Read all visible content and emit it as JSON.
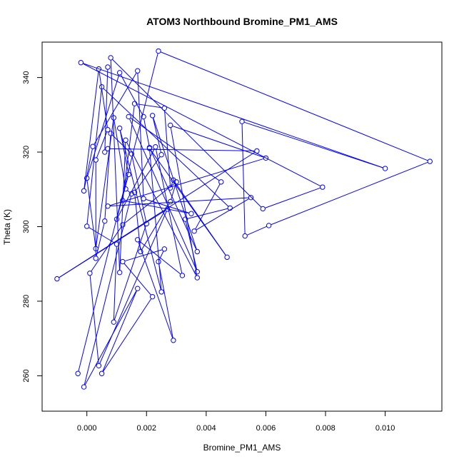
{
  "chart_data": {
    "type": "line",
    "title": "ATOM3 Northbound Bromine_PM1_AMS",
    "xlabel": "Bromine_PM1_AMS",
    "ylabel": "Theta (K)",
    "xlim": [
      -0.0015,
      0.0119
    ],
    "ylim": [
      250.5,
      349.5
    ],
    "x_ticks": [
      0.0,
      0.002,
      0.004,
      0.006,
      0.008,
      0.01
    ],
    "x_tick_labels": [
      "0.000",
      "0.002",
      "0.004",
      "0.006",
      "0.008",
      "0.010"
    ],
    "y_ticks": [
      260,
      280,
      300,
      320,
      340
    ],
    "y_tick_labels": [
      "260",
      "280",
      "300",
      "320",
      "340"
    ],
    "grid": false,
    "series_color": "#0000ff",
    "series": [
      {
        "points": [
          [
            -0.0003,
            260.6
          ],
          [
            0.0024,
            347.1
          ],
          [
            0.0115,
            317.5
          ],
          [
            0.0061,
            300.3
          ],
          [
            0.0053,
            297.5
          ],
          [
            0.0052,
            328.2
          ],
          [
            0.01,
            315.6
          ],
          [
            -0.0002,
            344.0
          ],
          [
            0.0079,
            310.6
          ],
          [
            0.0059,
            304.8
          ],
          [
            0.0008,
            345.3
          ],
          [
            0.0011,
            287.7
          ],
          [
            0.0013,
            323.2
          ],
          [
            0.0037,
            286.3
          ],
          [
            0.0028,
            327.2
          ],
          [
            0.006,
            318.4
          ],
          [
            0.0007,
            305.5
          ],
          [
            0.0055,
            307.8
          ],
          [
            0.0036,
            298.8
          ],
          [
            0.0045,
            312.0
          ],
          [
            0.0014,
            329.5
          ],
          [
            0.0037,
            287.9
          ],
          [
            0.0033,
            302.0
          ],
          [
            0.0048,
            305.0
          ],
          [
            0.0005,
            337.5
          ],
          [
            0.0,
            300.1
          ],
          [
            0.001,
            295.3
          ],
          [
            0.0009,
            274.4
          ],
          [
            0.002,
            300.8
          ],
          [
            0.0015,
            319.5
          ],
          [
            0.0008,
            325.0
          ],
          [
            0.0006,
            301.5
          ],
          [
            0.0003,
            291.5
          ],
          [
            0.0003,
            317.9
          ],
          [
            0.0007,
            326.0
          ],
          [
            0.0004,
            342.3
          ],
          [
            -0.0001,
            309.6
          ],
          [
            0.0002,
            321.5
          ],
          [
            0.0017,
            341.8
          ],
          [
            0.0019,
            307.5
          ],
          [
            0.0035,
            303.5
          ],
          [
            0.0012,
            307.0
          ],
          [
            0.0016,
            333.0
          ],
          [
            0.0026,
            331.8
          ],
          [
            0.0028,
            310.4
          ],
          [
            0.0029,
            312.5
          ],
          [
            0.0047,
            291.8
          ],
          [
            0.0021,
            321.0
          ],
          [
            0.0025,
            282.5
          ],
          [
            0.0011,
            326.4
          ],
          [
            0.0014,
            314.0
          ],
          [
            0.001,
            302.0
          ],
          [
            0.0023,
            321.4
          ],
          [
            0.0032,
            286.9
          ],
          [
            0.0017,
            296.5
          ],
          [
            0.0029,
            269.5
          ],
          [
            0.0024,
            290.6
          ],
          [
            0.0026,
            294.0
          ],
          [
            0.0012,
            290.6
          ],
          [
            0.0022,
            281.2
          ],
          [
            0.0005,
            260.6
          ],
          [
            0.0017,
            283.4
          ],
          [
            -0.0001,
            257.0
          ],
          [
            0.0015,
            308.8
          ],
          [
            0.0013,
            310.1
          ],
          [
            0.0009,
            329.2
          ],
          [
            0.0003,
            294.1
          ],
          [
            0.0,
            313.0
          ],
          [
            0.0011,
            341.3
          ],
          [
            0.0019,
            329.5
          ],
          [
            0.0021,
            321.2
          ],
          [
            0.0037,
            293.3
          ],
          [
            0.0022,
            329.8
          ],
          [
            0.0025,
            319.3
          ],
          [
            0.0016,
            309.2
          ],
          [
            0.0018,
            293.3
          ],
          [
            0.0028,
            306.7
          ],
          [
            0.003,
            312.0
          ],
          [
            0.0012,
            300.5
          ],
          [
            0.0001,
            287.5
          ],
          [
            0.0004,
            262.7
          ],
          [
            0.0027,
            304.7
          ],
          [
            -0.001,
            286.0
          ],
          [
            0.0057,
            320.3
          ],
          [
            0.0007,
            320.9
          ],
          [
            0.0006,
            320.0
          ],
          [
            0.0007,
            342.8
          ]
        ]
      }
    ]
  }
}
